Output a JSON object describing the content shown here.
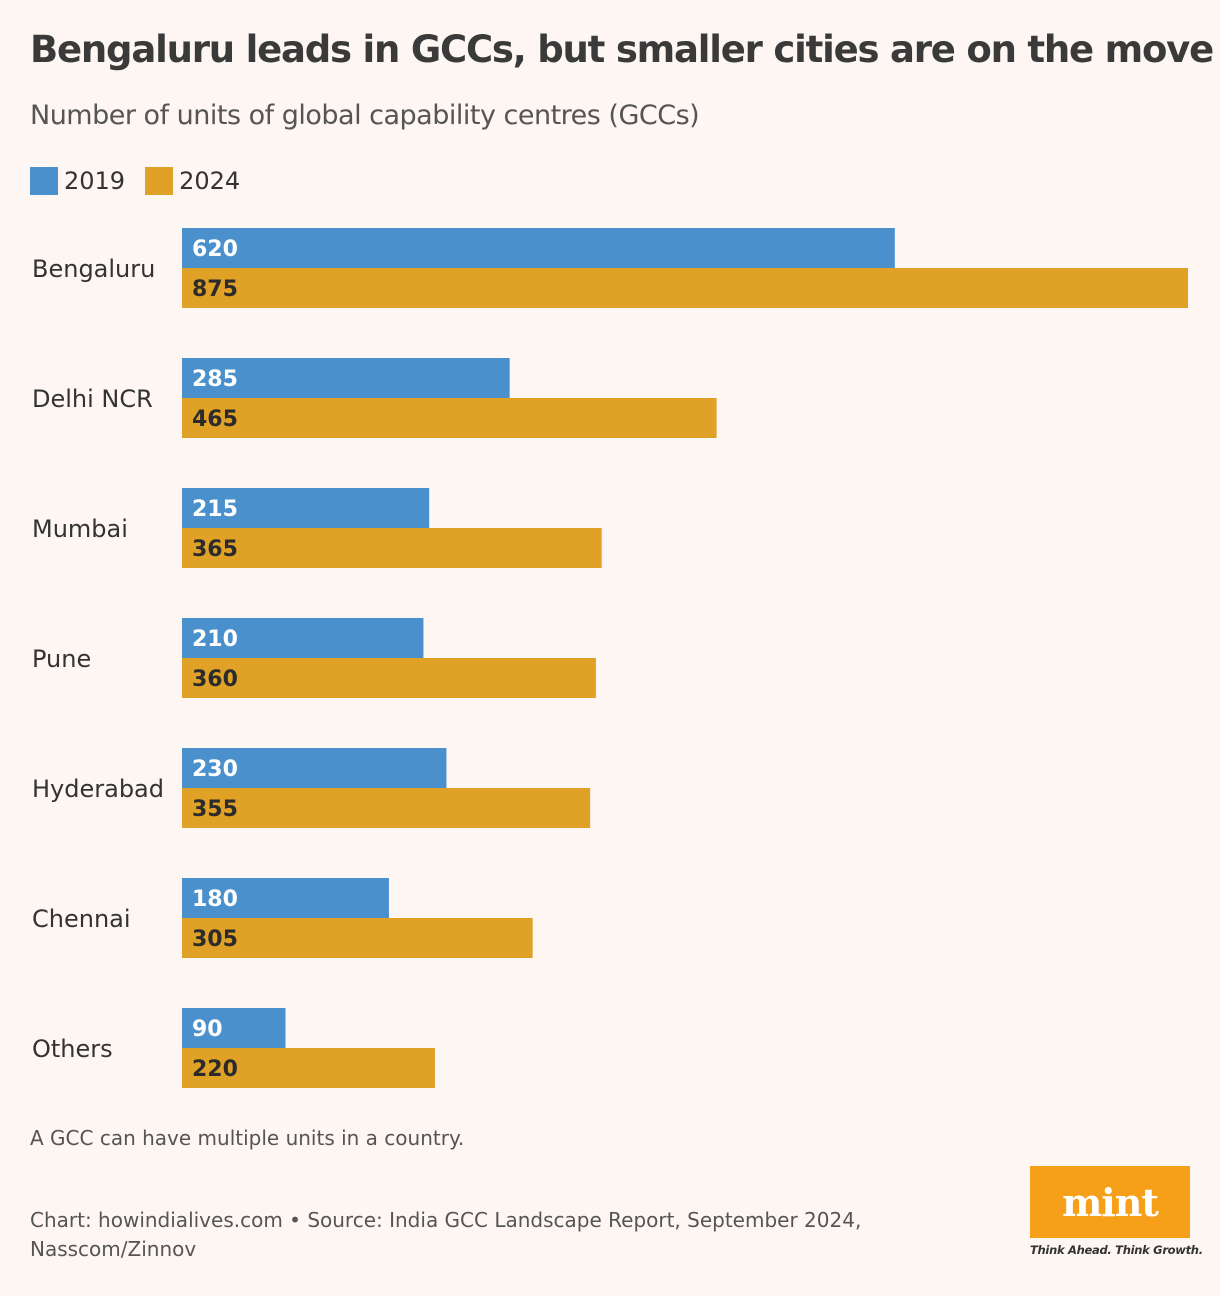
{
  "title": "Bengaluru leads in GCCs, but smaller cities are on the move",
  "subtitle": "Number of units of global capability centres (GCCs)",
  "footnote": "A GCC can have multiple units in a country.",
  "source": "Chart: howindialives.com • Source: India GCC Landscape Report, September 2024, Nasscom/Zinnov",
  "logo": {
    "text": "mint",
    "tagline": "Think Ahead. Think Growth."
  },
  "colors": {
    "s2019": "#4a90cd",
    "s2024": "#e0a127",
    "label2019": "#ffffff",
    "label2024": "#2b2b2b"
  },
  "chart_data": {
    "type": "bar",
    "orientation": "horizontal",
    "title": "Bengaluru leads in GCCs, but smaller cities are on the move",
    "xlabel": "",
    "ylabel": "",
    "xlim": [
      0,
      875
    ],
    "legend": "top-left",
    "grid": false,
    "categories": [
      "Bengaluru",
      "Delhi NCR",
      "Mumbai",
      "Pune",
      "Hyderabad",
      "Chennai",
      "Others"
    ],
    "series": [
      {
        "name": "2019",
        "values": [
          620,
          285,
          215,
          210,
          230,
          180,
          90
        ]
      },
      {
        "name": "2024",
        "values": [
          875,
          465,
          365,
          360,
          355,
          305,
          220
        ]
      }
    ]
  }
}
